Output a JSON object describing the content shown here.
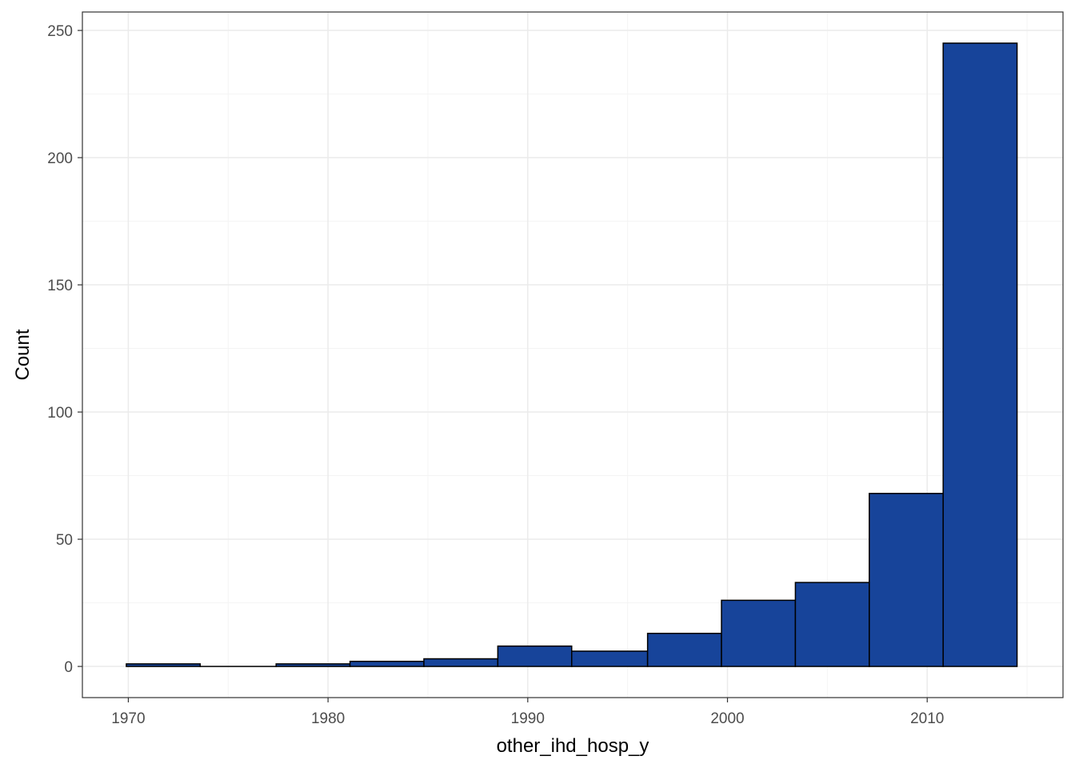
{
  "chart_data": {
    "type": "bar",
    "subtype": "histogram",
    "title": "",
    "xlabel": "other_ihd_hosp_y",
    "ylabel": "Count",
    "bins": [
      {
        "x0": 1969.9,
        "x1": 1973.6,
        "count": 1
      },
      {
        "x0": 1973.6,
        "x1": 1977.4,
        "count": 0
      },
      {
        "x0": 1977.4,
        "x1": 1981.1,
        "count": 1
      },
      {
        "x0": 1981.1,
        "x1": 1984.8,
        "count": 2
      },
      {
        "x0": 1984.8,
        "x1": 1988.5,
        "count": 3
      },
      {
        "x0": 1988.5,
        "x1": 1992.2,
        "count": 8
      },
      {
        "x0": 1992.2,
        "x1": 1996.0,
        "count": 6
      },
      {
        "x0": 1996.0,
        "x1": 1999.7,
        "count": 13
      },
      {
        "x0": 1999.7,
        "x1": 2003.4,
        "count": 26
      },
      {
        "x0": 2003.4,
        "x1": 2007.1,
        "count": 33
      },
      {
        "x0": 2007.1,
        "x1": 2010.8,
        "count": 68
      },
      {
        "x0": 2010.8,
        "x1": 2014.5,
        "count": 245
      }
    ],
    "xlim": [
      1967.7,
      2016.8
    ],
    "ylim": [
      -12.25,
      257.25
    ],
    "xticks": [
      1970,
      1980,
      1990,
      2000,
      2010
    ],
    "yticks": [
      0,
      50,
      100,
      150,
      200,
      250
    ],
    "grid": true,
    "legend": "none",
    "colors": {
      "bar_fill": "#17449a",
      "bar_stroke": "#000000",
      "grid_major": "#ebebeb",
      "grid_minor": "#f4f4f4",
      "panel_border": "#333333",
      "tick_text": "#4d4d4d"
    }
  }
}
